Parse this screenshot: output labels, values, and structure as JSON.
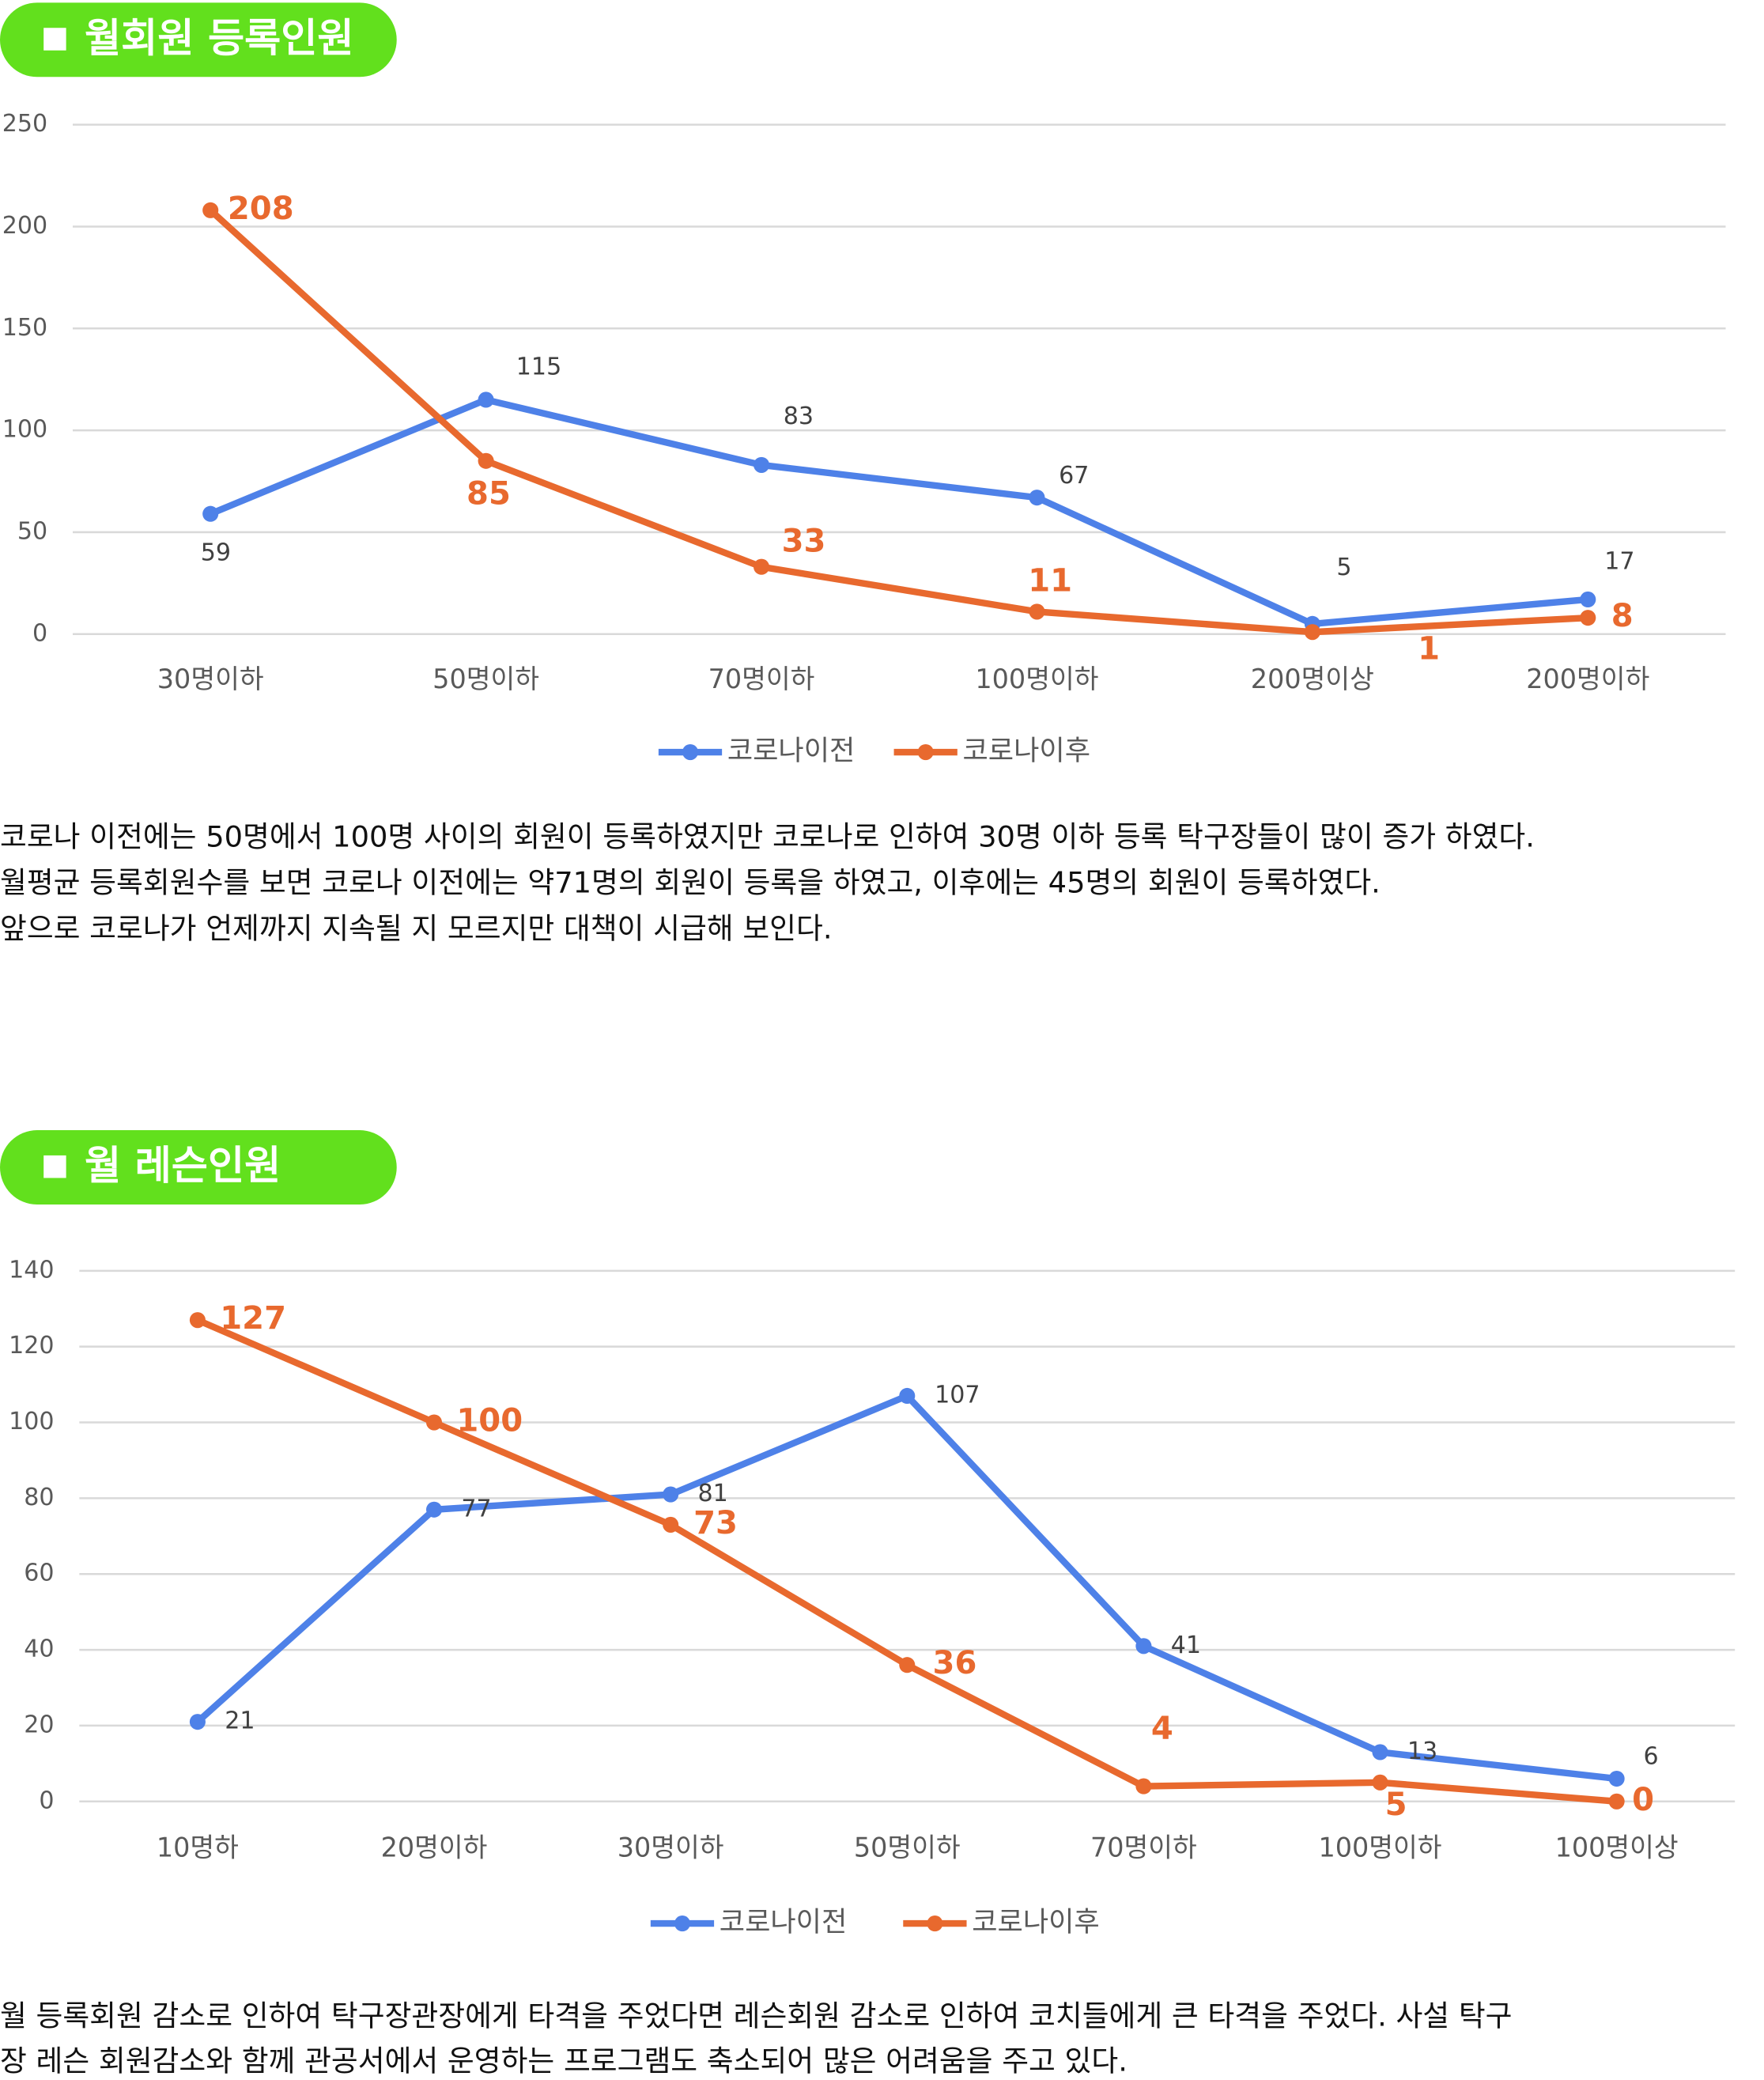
{
  "chart_data": [
    {
      "type": "line",
      "title": "월회원 등록인원",
      "categories": [
        "30명이하",
        "50명이하",
        "70명이하",
        "100명이하",
        "200명이상",
        "200명이하"
      ],
      "series": [
        {
          "name": "코로나이전",
          "color": "#4e81e8",
          "values": [
            59,
            115,
            83,
            67,
            5,
            17
          ]
        },
        {
          "name": "코로나이후",
          "color": "#e8692e",
          "values": [
            208,
            85,
            33,
            11,
            1,
            8
          ]
        }
      ],
      "ylim": [
        0,
        250
      ],
      "yticks": [
        0,
        50,
        100,
        150,
        200,
        250
      ],
      "grid": true,
      "legend": "bottom"
    },
    {
      "type": "line",
      "title": "월 레슨인원",
      "categories": [
        "10명하",
        "20명이하",
        "30명이하",
        "50명이하",
        "70명이하",
        "100명이하",
        "100명이상"
      ],
      "series": [
        {
          "name": "코로나이전",
          "color": "#4e81e8",
          "values": [
            21,
            77,
            81,
            107,
            41,
            13,
            6
          ]
        },
        {
          "name": "코로나이후",
          "color": "#e8692e",
          "values": [
            127,
            100,
            73,
            36,
            4,
            5,
            0
          ]
        }
      ],
      "ylim": [
        0,
        140
      ],
      "yticks": [
        0,
        20,
        40,
        60,
        80,
        100,
        120,
        140
      ],
      "grid": true,
      "legend": "bottom"
    }
  ],
  "paragraphs": [
    [
      "코로나 이전에는 50명에서 100명 사이의 회원이 등록하였지만 코로나로 인하여 30명 이하 등록 탁구장들이 많이 증가 하였다.",
      "월평균 등록회원수를  보면 코로나 이전에는 약71명의 회원이 등록을 하였고, 이후에는 45명의 회원이 등록하였다.",
      "앞으로 코로나가 언제까지 지속될 지 모르지만 대책이 시급해 보인다."
    ],
    [
      "월 등록회원 감소로 인하여 탁구장관장에게 타격을 주었다면 레슨회원 감소로 인하여 코치들에게 큰 타격을 주었다.  사설 탁구",
      "장 레슨 회원감소와 함께 관공서에서 운영하는 프로그램도 축소되어 많은 어려움을 주고 있다."
    ]
  ]
}
